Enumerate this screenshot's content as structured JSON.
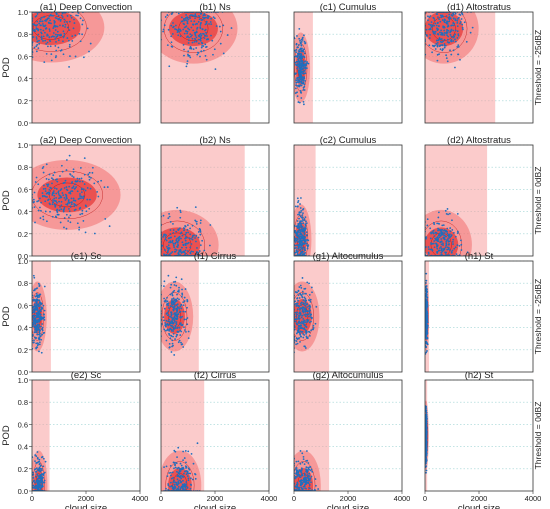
{
  "figure": {
    "y_axis_label": "POD",
    "x_axis_label": "cloud size",
    "row_labels": [
      "Threshold = -25dBZ",
      "Threshold = 0dBZ",
      "Threshold = -25dBZ",
      "Threshold = 0dBZ"
    ],
    "y_tick_labels": [
      "0.0",
      "0.2",
      "0.4",
      "0.6",
      "0.8",
      "1.0"
    ],
    "x_tick_labels": [
      "0",
      "2000",
      "4000"
    ]
  },
  "colors": {
    "density_light": "#f7a0a0",
    "density_mid": "#ef5a5a",
    "density_dark": "#e01818",
    "scatter_point": "#1f6fbf",
    "gridline": "#9fd3d3"
  },
  "chart_data": [
    {
      "panel": "a1",
      "title": "(a1) Deep Convection",
      "type": "scatter",
      "overlay": "kde",
      "xlim": [
        0,
        4000
      ],
      "ylim": [
        0,
        1
      ],
      "series": [
        {
          "x_range": [
            0,
            4000
          ],
          "y_range": [
            0.0,
            1.0
          ],
          "density_peak": [
            700,
            0.86
          ],
          "x_extent": 4000
        }
      ]
    },
    {
      "panel": "b1",
      "title": "(b1) Ns",
      "type": "scatter",
      "overlay": "kde",
      "xlim": [
        0,
        4000
      ],
      "ylim": [
        0,
        1
      ],
      "series": [
        {
          "x_range": [
            0,
            3300
          ],
          "y_range": [
            0.0,
            1.0
          ],
          "density_peak": [
            1200,
            0.85
          ],
          "x_extent": 3300
        }
      ]
    },
    {
      "panel": "c1",
      "title": "(c1) Cumulus",
      "type": "scatter",
      "overlay": "kde",
      "xlim": [
        0,
        4000
      ],
      "ylim": [
        0,
        1
      ],
      "series": [
        {
          "x_range": [
            0,
            700
          ],
          "y_range": [
            0.0,
            1.0
          ],
          "density_peak": [
            250,
            0.5
          ],
          "x_extent": 700
        }
      ]
    },
    {
      "panel": "d1",
      "title": "(d1) Altostratus",
      "type": "scatter",
      "overlay": "kde",
      "xlim": [
        0,
        4000
      ],
      "ylim": [
        0,
        1
      ],
      "series": [
        {
          "x_range": [
            0,
            2600
          ],
          "y_range": [
            0.0,
            1.0
          ],
          "density_peak": [
            700,
            0.85
          ],
          "x_extent": 2600
        }
      ]
    },
    {
      "panel": "a2",
      "title": "(a2) Deep Convection",
      "type": "scatter",
      "overlay": "kde",
      "xlim": [
        0,
        4000
      ],
      "ylim": [
        0,
        1
      ],
      "series": [
        {
          "x_range": [
            0,
            4000
          ],
          "y_range": [
            0.0,
            1.0
          ],
          "density_peak": [
            1300,
            0.55
          ],
          "x_extent": 4000
        }
      ]
    },
    {
      "panel": "b2",
      "title": "(b2) Ns",
      "type": "scatter",
      "overlay": "kde",
      "xlim": [
        0,
        4000
      ],
      "ylim": [
        0,
        1
      ],
      "series": [
        {
          "x_range": [
            0,
            3100
          ],
          "y_range": [
            0.0,
            1.0
          ],
          "density_peak": [
            600,
            0.1
          ],
          "x_extent": 3100
        }
      ]
    },
    {
      "panel": "c2",
      "title": "(c2) Cumulus",
      "type": "scatter",
      "overlay": "kde",
      "xlim": [
        0,
        4000
      ],
      "ylim": [
        0,
        1
      ],
      "series": [
        {
          "x_range": [
            0,
            800
          ],
          "y_range": [
            0.0,
            0.95
          ],
          "density_peak": [
            250,
            0.15
          ],
          "x_extent": 800
        }
      ]
    },
    {
      "panel": "d2",
      "title": "(d2) Altostratus",
      "type": "scatter",
      "overlay": "kde",
      "xlim": [
        0,
        4000
      ],
      "ylim": [
        0,
        1
      ],
      "series": [
        {
          "x_range": [
            0,
            2300
          ],
          "y_range": [
            0.0,
            1.0
          ],
          "density_peak": [
            600,
            0.1
          ],
          "x_extent": 2300
        }
      ]
    },
    {
      "panel": "e1",
      "title": "(e1) Sc",
      "type": "scatter",
      "overlay": "kde",
      "xlim": [
        0,
        4000
      ],
      "ylim": [
        0,
        1
      ],
      "series": [
        {
          "x_range": [
            0,
            700
          ],
          "y_range": [
            0.0,
            1.0
          ],
          "density_peak": [
            200,
            0.5
          ],
          "x_extent": 700
        }
      ]
    },
    {
      "panel": "f1",
      "title": "(f1) Cirrus",
      "type": "scatter",
      "overlay": "kde",
      "xlim": [
        0,
        4000
      ],
      "ylim": [
        0,
        1
      ],
      "series": [
        {
          "x_range": [
            0,
            1400
          ],
          "y_range": [
            0.0,
            1.0
          ],
          "density_peak": [
            500,
            0.5
          ],
          "x_extent": 1400
        }
      ]
    },
    {
      "panel": "g1",
      "title": "(g1) Altocumulus",
      "type": "scatter",
      "overlay": "kde",
      "xlim": [
        0,
        4000
      ],
      "ylim": [
        0,
        1
      ],
      "series": [
        {
          "x_range": [
            0,
            1300
          ],
          "y_range": [
            0.0,
            1.0
          ],
          "density_peak": [
            300,
            0.5
          ],
          "x_extent": 1300
        }
      ]
    },
    {
      "panel": "h1",
      "title": "(h1) St",
      "type": "scatter",
      "overlay": "kde",
      "xlim": [
        0,
        4000
      ],
      "ylim": [
        0,
        1
      ],
      "series": [
        {
          "x_range": [
            0,
            150
          ],
          "y_range": [
            0.0,
            1.0
          ],
          "density_peak": [
            50,
            0.5
          ],
          "x_extent": 150
        }
      ]
    },
    {
      "panel": "e2",
      "title": "(e2) Sc",
      "type": "scatter",
      "overlay": "kde",
      "xlim": [
        0,
        4000
      ],
      "ylim": [
        0,
        1
      ],
      "series": [
        {
          "x_range": [
            0,
            650
          ],
          "y_range": [
            0.0,
            1.0
          ],
          "density_peak": [
            250,
            0.05
          ],
          "x_extent": 650
        }
      ]
    },
    {
      "panel": "f2",
      "title": "(f2) Cirrus",
      "type": "scatter",
      "overlay": "kde",
      "xlim": [
        0,
        4000
      ],
      "ylim": [
        0,
        1
      ],
      "series": [
        {
          "x_range": [
            0,
            1600
          ],
          "y_range": [
            0.0,
            1.0
          ],
          "density_peak": [
            700,
            0.05
          ],
          "x_extent": 1600
        }
      ]
    },
    {
      "panel": "g2",
      "title": "(g2) Altocumulus",
      "type": "scatter",
      "overlay": "kde",
      "xlim": [
        0,
        4000
      ],
      "ylim": [
        0,
        1
      ],
      "series": [
        {
          "x_range": [
            0,
            1300
          ],
          "y_range": [
            0.0,
            0.9
          ],
          "density_peak": [
            350,
            0.05
          ],
          "x_extent": 1300
        }
      ]
    },
    {
      "panel": "h2",
      "title": "(h2) St",
      "type": "scatter",
      "overlay": "kde",
      "xlim": [
        0,
        4000
      ],
      "ylim": [
        0,
        1
      ],
      "series": [
        {
          "x_range": [
            0,
            80
          ],
          "y_range": [
            0.0,
            1.0
          ],
          "density_peak": [
            40,
            0.5
          ],
          "x_extent": 80
        }
      ]
    }
  ]
}
